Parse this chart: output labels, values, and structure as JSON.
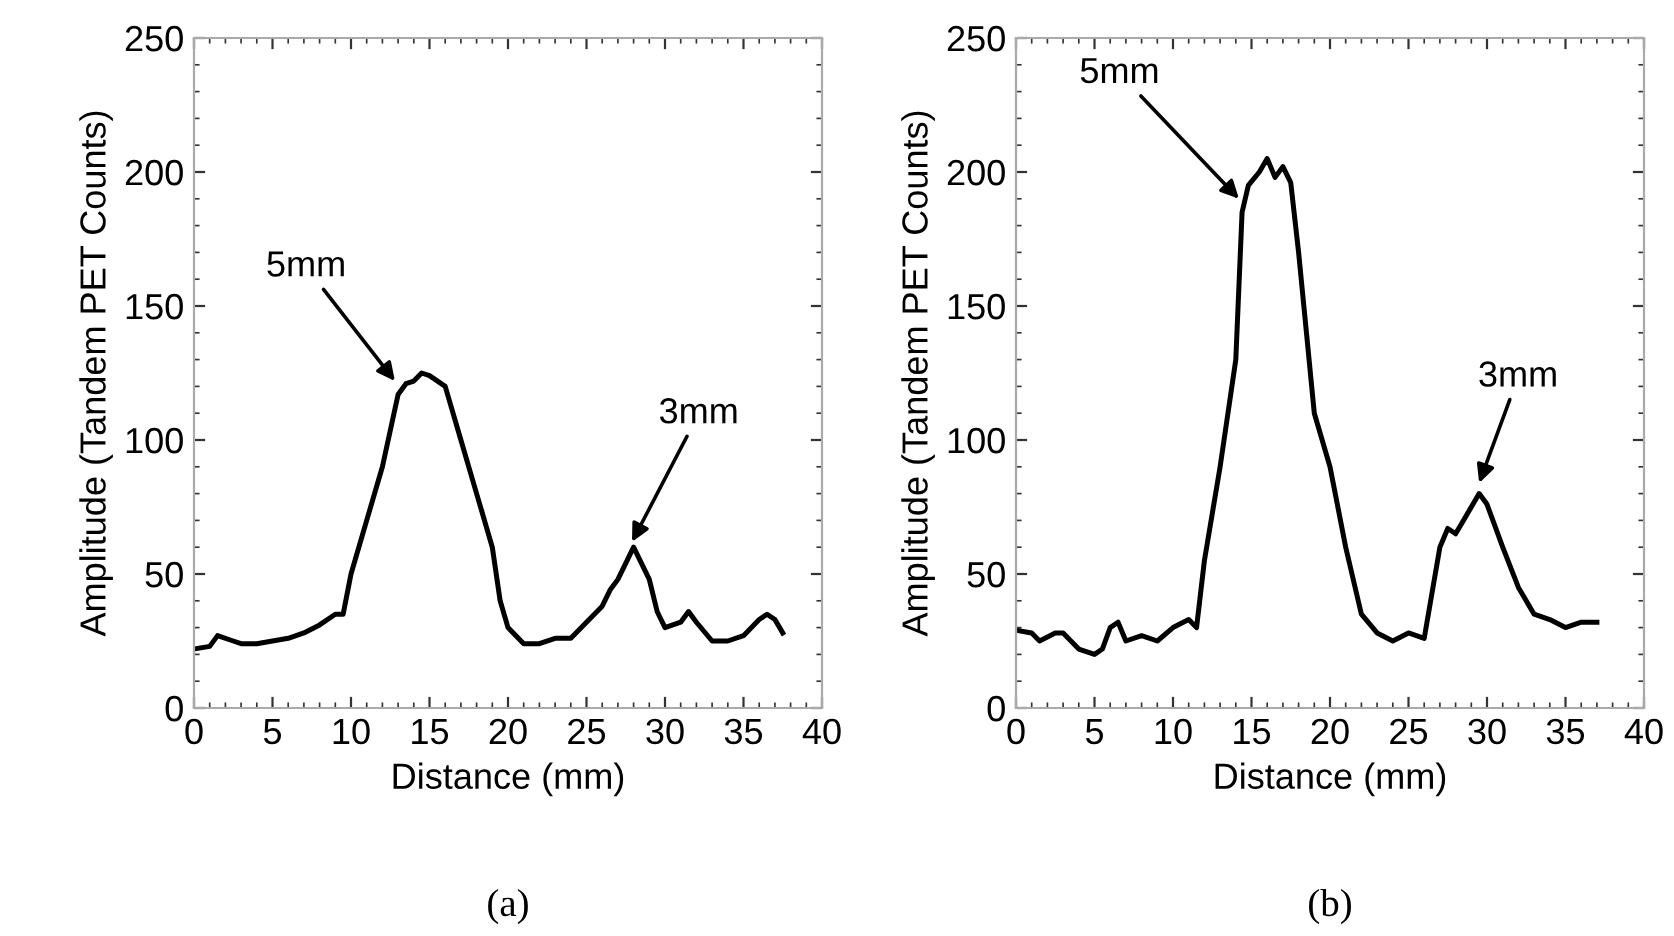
{
  "chart_data": [
    {
      "type": "line",
      "xlabel": "Distance (mm)",
      "ylabel": "Amplitude (Tandem PET Counts)",
      "xlim": [
        0,
        40
      ],
      "ylim": [
        0,
        250
      ],
      "xticks": [
        0,
        5,
        10,
        15,
        20,
        25,
        30,
        35,
        40
      ],
      "yticks": [
        0,
        50,
        100,
        150,
        200,
        250
      ],
      "grid": false,
      "series": [
        {
          "color": "#000000",
          "x": [
            0,
            1,
            1.5,
            2.5,
            3,
            4,
            5,
            6,
            7,
            8,
            9,
            9.5,
            10,
            11,
            12,
            13,
            13.5,
            14,
            14.5,
            15,
            16,
            17,
            18,
            19,
            19.5,
            20,
            21,
            22,
            23,
            24,
            25,
            26,
            26.5,
            27,
            28,
            29,
            29.5,
            30,
            31,
            31.5,
            32,
            33,
            34,
            35,
            36,
            36.5,
            37,
            37.5
          ],
          "values": [
            22,
            23,
            27,
            25,
            24,
            24,
            25,
            26,
            28,
            31,
            35,
            35,
            50,
            70,
            90,
            117,
            121,
            122,
            125,
            124,
            120,
            100,
            80,
            60,
            40,
            30,
            24,
            24,
            26,
            26,
            32,
            38,
            44,
            48,
            60,
            48,
            36,
            30,
            32,
            36,
            32,
            25,
            25,
            27,
            33,
            35,
            33,
            28
          ]
        }
      ],
      "annotations": [
        {
          "text": "5mm",
          "x": 12.8,
          "y": 122
        },
        {
          "text": "3mm",
          "x": 27.9,
          "y": 62
        },
        "(a)"
      ]
    },
    {
      "type": "line",
      "xlabel": "Distance (mm)",
      "ylabel": "Amplitude (Tandem PET Counts)",
      "xlim": [
        0,
        40
      ],
      "ylim": [
        0,
        250
      ],
      "xticks": [
        0,
        5,
        10,
        15,
        20,
        25,
        30,
        35,
        40
      ],
      "yticks": [
        0,
        50,
        100,
        150,
        200,
        250
      ],
      "grid": false,
      "series": [
        {
          "color": "#000000",
          "x": [
            0,
            1,
            1.5,
            2.5,
            3,
            4,
            5,
            5.5,
            6,
            6.5,
            7,
            8,
            9,
            10,
            11,
            11.5,
            12,
            13,
            14,
            14.4,
            14.8,
            15.5,
            16,
            16.5,
            17,
            17.5,
            18,
            18.5,
            19,
            20,
            21,
            22,
            23,
            24,
            25,
            26,
            27,
            27.5,
            28,
            28.5,
            29,
            29.5,
            30,
            31,
            32,
            33,
            34,
            35,
            36,
            37
          ],
          "values": [
            29,
            28,
            25,
            28,
            28,
            22,
            20,
            22,
            30,
            32,
            25,
            27,
            25,
            30,
            33,
            30,
            55,
            90,
            130,
            185,
            195,
            200,
            205,
            198,
            202,
            196,
            170,
            140,
            110,
            90,
            60,
            35,
            28,
            25,
            28,
            26,
            60,
            67,
            65,
            70,
            75,
            80,
            76,
            60,
            45,
            35,
            33,
            30,
            32,
            32
          ]
        }
      ],
      "annotations": [
        {
          "text": "5mm",
          "x": 14.2,
          "y": 190
        },
        {
          "text": "3mm",
          "x": 29.5,
          "y": 84
        },
        "(b)"
      ]
    }
  ]
}
